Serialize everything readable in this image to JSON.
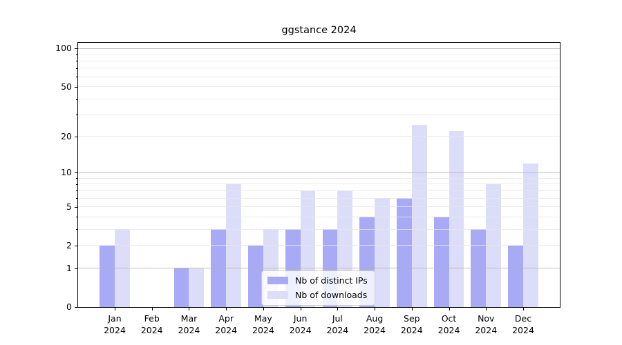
{
  "chart_data": {
    "type": "bar",
    "title": "ggstance 2024",
    "scale": "log1p",
    "categories": [
      "Jan",
      "Feb",
      "Mar",
      "Apr",
      "May",
      "Jun",
      "Jul",
      "Aug",
      "Sep",
      "Oct",
      "Nov",
      "Dec"
    ],
    "year_label": "2024",
    "series": [
      {
        "name": "Nb of distinct IPs",
        "color": "#a8aaf6",
        "values": [
          2,
          0,
          1,
          3,
          2,
          3,
          3,
          4,
          6,
          4,
          3,
          2
        ]
      },
      {
        "name": "Nb of downloads",
        "color": "#dcdef9",
        "values": [
          3,
          0,
          1,
          8,
          3,
          7,
          7,
          6,
          25,
          22,
          8,
          12
        ]
      }
    ],
    "yticks": [
      0,
      1,
      2,
      5,
      10,
      20,
      50,
      100
    ],
    "ylim": [
      0,
      111
    ],
    "grid": {
      "major": [
        1,
        10,
        100
      ],
      "minor": [
        2,
        3,
        4,
        5,
        6,
        7,
        8,
        9,
        20,
        30,
        40,
        50,
        60,
        70,
        80,
        90
      ]
    },
    "legend_position": "lower center",
    "grid_on": true
  }
}
